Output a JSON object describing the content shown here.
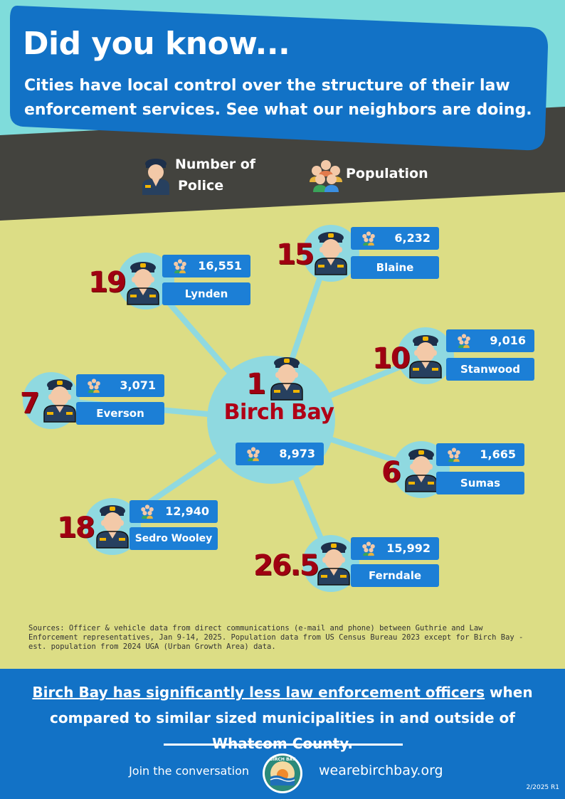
{
  "header": {
    "title": "Did you know...",
    "subtitle": "Cities have local control over the structure of their law enforcement services. See what our neighbors are doing."
  },
  "legend": {
    "police_line1": "Number of",
    "police_line2": "Police",
    "population_label": "Population"
  },
  "center": {
    "name": "Birch Bay",
    "police": "1",
    "population": "8,973"
  },
  "cities": [
    {
      "name": "Lynden",
      "police": "19",
      "population": "16,551"
    },
    {
      "name": "Blaine",
      "police": "15",
      "population": "6,232"
    },
    {
      "name": "Stanwood",
      "police": "10",
      "population": "9,016"
    },
    {
      "name": "Everson",
      "police": "7",
      "population": "3,071"
    },
    {
      "name": "Sumas",
      "police": "6",
      "population": "1,665"
    },
    {
      "name": "Sedro Wooley",
      "police": "18",
      "population": "12,940"
    },
    {
      "name": "Ferndale",
      "police": "26.5",
      "population": "15,992"
    }
  ],
  "sources": "Sources: Officer & vehicle data from direct communications (e-mail and phone) between Guthrie and Law Enforcement representatives, Jan 9-14, 2025. Population data from US Census Bureau 2023 except for Birch Bay - est. population from 2024 UGA (Urban Growth Area) data.",
  "footer": {
    "message_underlined": "Birch Bay has significantly less law enforcement officers",
    "message_rest": " when compared to similar sized municipalities in and outside of Whatcom County.",
    "join_text": "Join the conversation",
    "website": "wearebirchbay.org",
    "logo_text": "BIRCH BAY",
    "revision": "2/2025 R1"
  },
  "colors": {
    "sky": "#7fdcdb",
    "dark_band": "#43433e",
    "field": "#dcdd85",
    "blue": "#1272c6",
    "box_blue": "#1c7fd6",
    "red_number": "#a00012",
    "connector": "#8fd9e0"
  },
  "icons": {
    "police": "police-officer-icon",
    "population": "people-group-icon"
  }
}
